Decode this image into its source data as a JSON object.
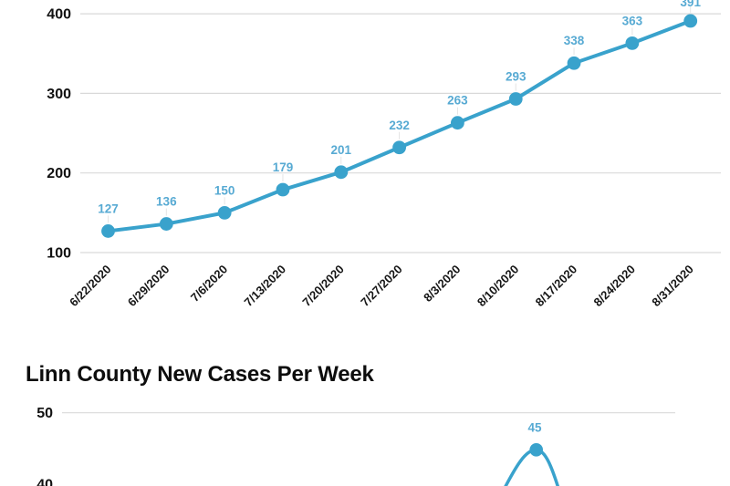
{
  "colors": {
    "line": "#39a2cc",
    "point": "#39a2cc",
    "value_label": "#57aad3",
    "axis_text": "#111111",
    "gridline": "#d9d9d9",
    "connector": "#e4e4e4",
    "background": "#ffffff",
    "title_text": "#0d0d0d"
  },
  "chart_data": [
    {
      "type": "line",
      "name": "linn-county-cumulative-cases-by-week",
      "categories": [
        "6/22/2020",
        "6/29/2020",
        "7/6/2020",
        "7/13/2020",
        "7/20/2020",
        "7/27/2020",
        "8/3/2020",
        "8/10/2020",
        "8/17/2020",
        "8/24/2020",
        "8/31/2020"
      ],
      "values": [
        127,
        136,
        150,
        179,
        201,
        232,
        263,
        293,
        338,
        363,
        391
      ],
      "y_ticks": [
        400,
        300,
        200,
        100
      ],
      "ylim": [
        100,
        415
      ],
      "grid": true,
      "legend": "none",
      "point_labels_shown": true,
      "x_label_rotation_deg": -45
    },
    {
      "type": "line",
      "name": "linn-county-new-cases-per-week",
      "title": "Linn County New Cases Per Week",
      "y_ticks": [
        50,
        40
      ],
      "visible_points": [
        {
          "value": 45
        }
      ],
      "grid": true,
      "legend": "none",
      "point_labels_shown": true,
      "partially_cut_off": true
    }
  ]
}
